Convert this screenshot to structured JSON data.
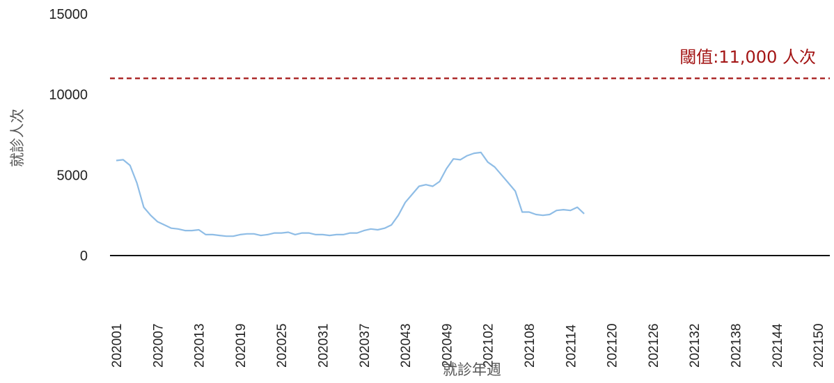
{
  "chart_data": {
    "type": "line",
    "title": "",
    "xlabel": "就診年週",
    "ylabel": "就診人次",
    "ylim": [
      0,
      15000
    ],
    "y_ticks": [
      0,
      5000,
      10000,
      15000
    ],
    "x_tick_labels": [
      "202001",
      "202007",
      "202013",
      "202019",
      "202025",
      "202031",
      "202037",
      "202043",
      "202049",
      "202102",
      "202108",
      "202114",
      "202120",
      "202126",
      "202132",
      "202138",
      "202144",
      "202150"
    ],
    "grid": false,
    "line_color": "#8fbde6",
    "threshold": {
      "value": 11000,
      "label": "閾值:11,000 人次",
      "color": "#a31515"
    },
    "series": [
      {
        "name": "",
        "values": [
          5900,
          5950,
          5600,
          4500,
          3000,
          2500,
          2100,
          1900,
          1700,
          1650,
          1550,
          1550,
          1600,
          1300,
          1300,
          1250,
          1200,
          1200,
          1300,
          1350,
          1350,
          1250,
          1300,
          1400,
          1400,
          1450,
          1300,
          1400,
          1400,
          1300,
          1300,
          1250,
          1300,
          1300,
          1400,
          1400,
          1550,
          1650,
          1600,
          1700,
          1900,
          2500,
          3300,
          3800,
          4300,
          4400,
          4300,
          4600,
          5400,
          6000,
          5950,
          6200,
          6350,
          6400,
          5800,
          5500,
          5000,
          4500,
          4000,
          2700,
          2700,
          2550,
          2500,
          2550,
          2800,
          2850,
          2800,
          3000,
          2600
        ]
      }
    ]
  }
}
